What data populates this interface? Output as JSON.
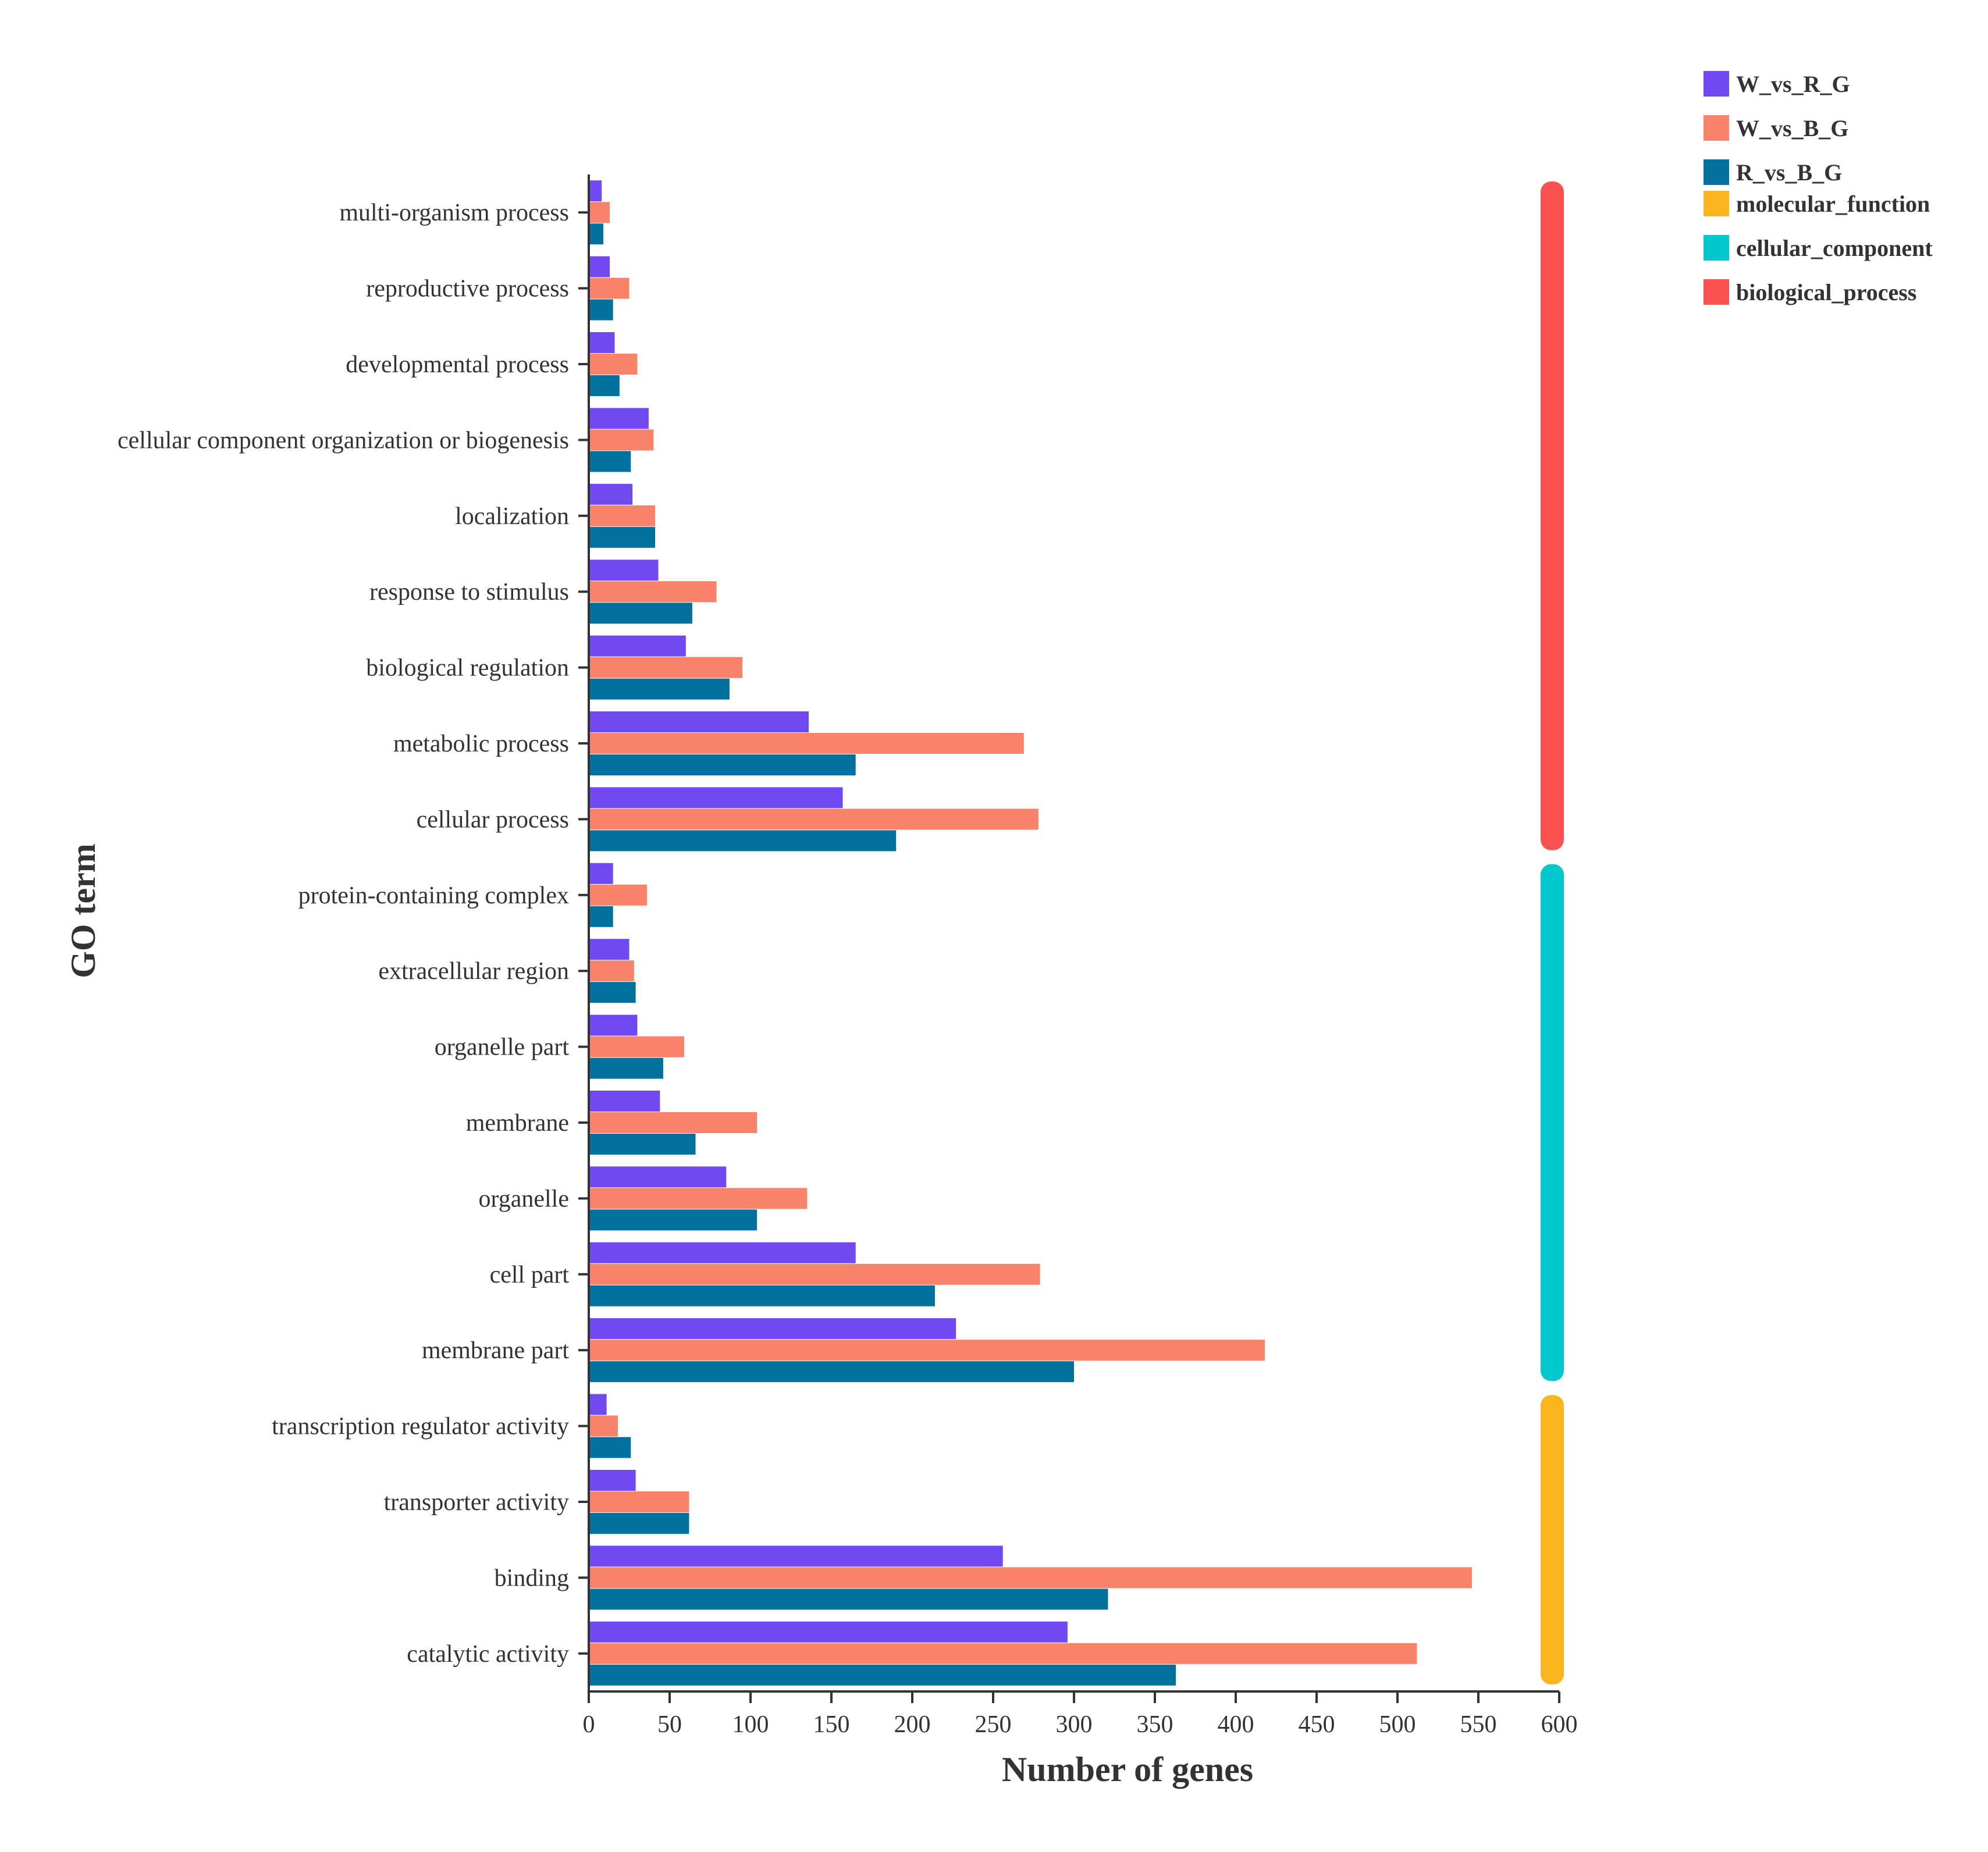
{
  "chart_data": {
    "type": "bar",
    "orientation": "horizontal",
    "xlabel": "Number of genes",
    "ylabel": "GO term",
    "xlim": [
      0,
      600
    ],
    "xticks": [
      0,
      50,
      100,
      150,
      200,
      250,
      300,
      350,
      400,
      450,
      500,
      550,
      600
    ],
    "grid": false,
    "legend_position": "top-right",
    "categories": [
      "multi-organism process",
      "reproductive process",
      "developmental process",
      "cellular component organization or biogenesis",
      "localization",
      "response to stimulus",
      "biological regulation",
      "metabolic process",
      "cellular process",
      "protein-containing complex",
      "extracellular region",
      "organelle part",
      "membrane",
      "organelle",
      "cell part",
      "membrane part",
      "transcription regulator activity",
      "transporter activity",
      "binding",
      "catalytic activity"
    ],
    "series": [
      {
        "name": "W_vs_R_G",
        "color": "#7049f0",
        "values": [
          8,
          13,
          16,
          37,
          27,
          43,
          60,
          136,
          157,
          15,
          25,
          30,
          44,
          85,
          165,
          227,
          11,
          29,
          256,
          296
        ]
      },
      {
        "name": "W_vs_B_G",
        "color": "#f9826a",
        "values": [
          13,
          25,
          30,
          40,
          41,
          79,
          95,
          269,
          278,
          36,
          28,
          59,
          104,
          135,
          279,
          418,
          18,
          62,
          546,
          512
        ]
      },
      {
        "name": "R_vs_B_G",
        "color": "#02719d",
        "values": [
          9,
          15,
          19,
          26,
          41,
          64,
          87,
          165,
          190,
          15,
          29,
          46,
          66,
          104,
          214,
          300,
          26,
          62,
          321,
          363
        ]
      }
    ],
    "groups": [
      {
        "name": "molecular_function",
        "color": "#fab51f",
        "categories": [
          "transcription regulator activity",
          "transporter activity",
          "binding",
          "catalytic activity"
        ]
      },
      {
        "name": "cellular_component",
        "color": "#00c8cd",
        "categories": [
          "protein-containing complex",
          "extracellular region",
          "organelle part",
          "membrane",
          "organelle",
          "cell part",
          "membrane part"
        ]
      },
      {
        "name": "biological_process",
        "color": "#fc5151",
        "categories": [
          "multi-organism process",
          "reproductive process",
          "developmental process",
          "cellular component organization or biogenesis",
          "localization",
          "response to stimulus",
          "biological regulation",
          "metabolic process",
          "cellular process"
        ]
      }
    ],
    "legend": [
      {
        "label": "W_vs_R_G",
        "color": "#7049f0"
      },
      {
        "label": "W_vs_B_G",
        "color": "#f9826a"
      },
      {
        "label": "R_vs_B_G",
        "color": "#02719d"
      },
      {
        "label": "molecular_function",
        "color": "#fab51f"
      },
      {
        "label": "cellular_component",
        "color": "#00c8cd"
      },
      {
        "label": "biological_process",
        "color": "#fc5151"
      }
    ]
  }
}
